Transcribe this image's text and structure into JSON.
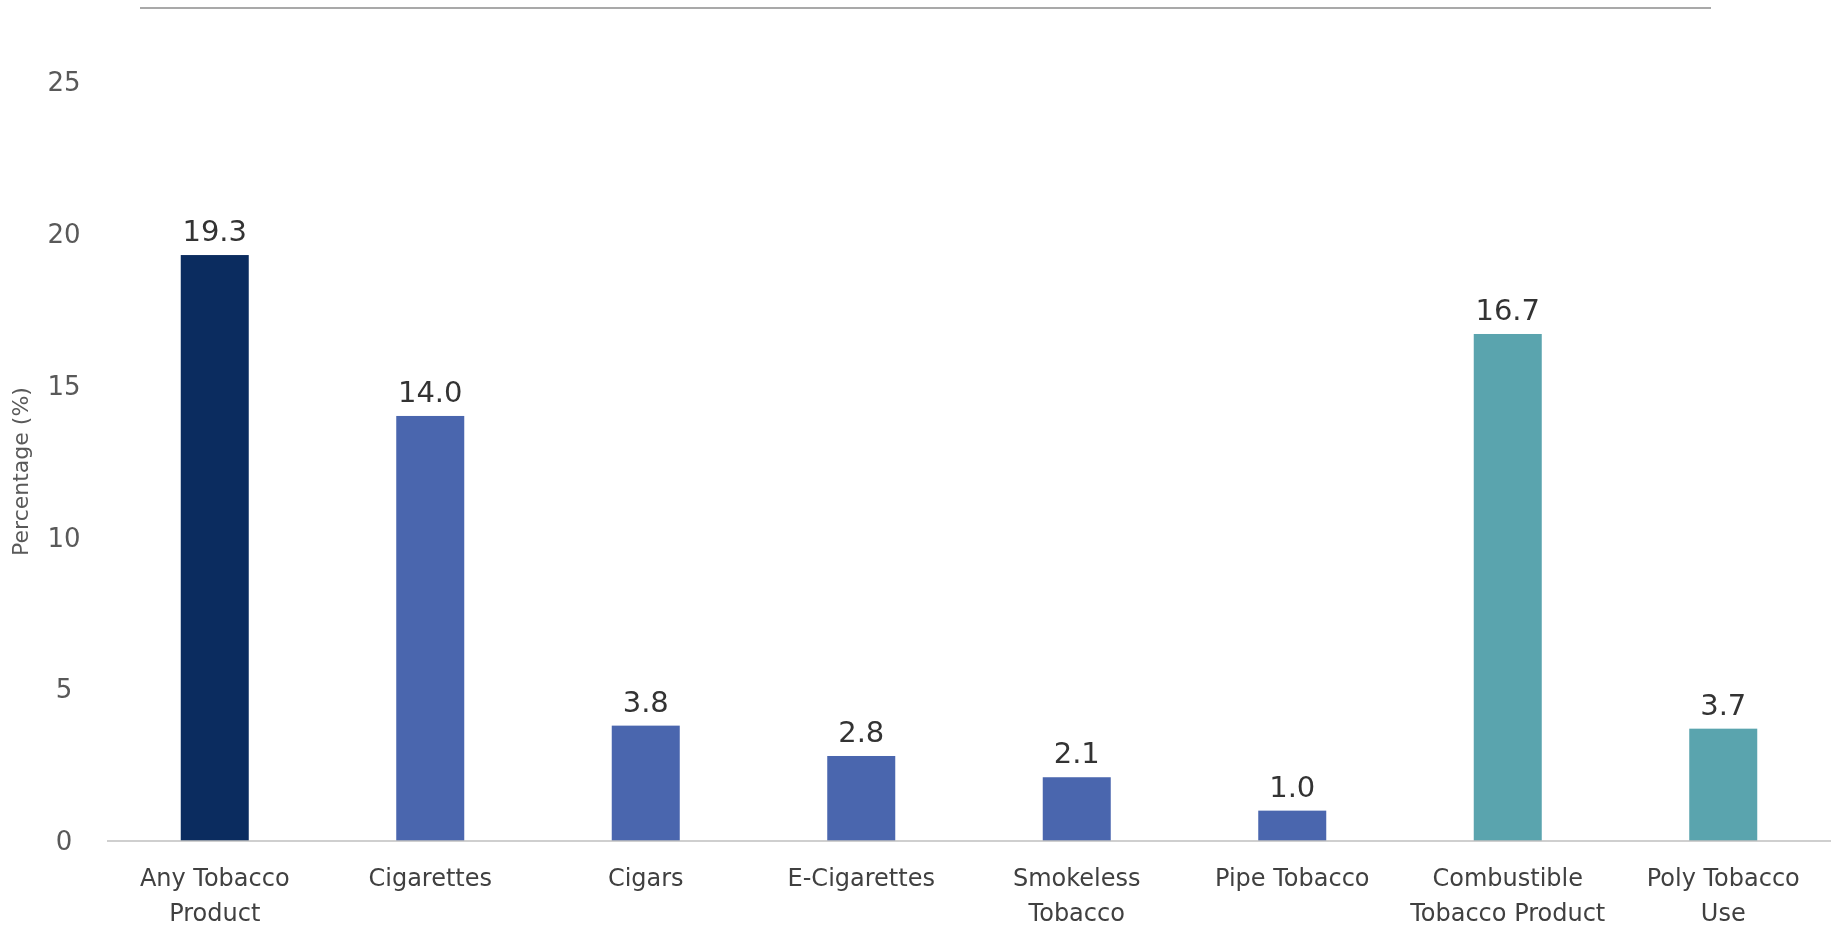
{
  "chart_data": {
    "type": "bar",
    "ylabel": "Percentage (%)",
    "categories": [
      "Any Tobacco Product",
      "Cigarettes",
      "Cigars",
      "E-Cigarettes",
      "Smokeless Tobacco",
      "Pipe Tobacco",
      "Combustible Tobacco Product",
      "Poly Tobacco Use"
    ],
    "values": [
      19.3,
      14.0,
      3.8,
      2.8,
      2.1,
      1.0,
      16.7,
      3.7
    ],
    "value_labels": [
      "19.3",
      "14.0",
      "3.8",
      "2.8",
      "2.1",
      "1.0",
      "16.7",
      "3.7"
    ],
    "colors": [
      "#0b2c5f",
      "#4a66ae",
      "#4a66ae",
      "#4a66ae",
      "#4a66ae",
      "#4a66ae",
      "#5aa4ae",
      "#5aa4ae"
    ],
    "ylim": [
      0,
      25
    ],
    "yticks": [
      0,
      5,
      10,
      15,
      20,
      25
    ],
    "grid": false
  }
}
